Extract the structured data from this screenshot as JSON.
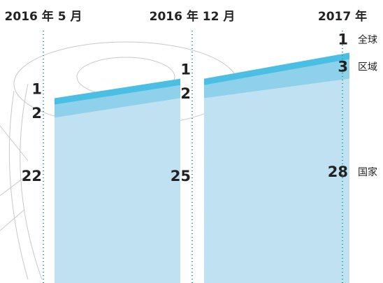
{
  "chart_data": {
    "type": "stacked-area",
    "x": [
      "2016 年 5 月",
      "2016 年 12 月",
      "2017 年"
    ],
    "series": [
      {
        "name": "国家",
        "color": "#bfe1f1",
        "values": [
          22,
          25,
          28
        ]
      },
      {
        "name": "区域",
        "color": "#8fd0ea",
        "values": [
          2,
          2,
          3
        ]
      },
      {
        "name": "全球",
        "color": "#4bbfe3",
        "values": [
          1,
          1,
          1
        ]
      }
    ]
  }
}
